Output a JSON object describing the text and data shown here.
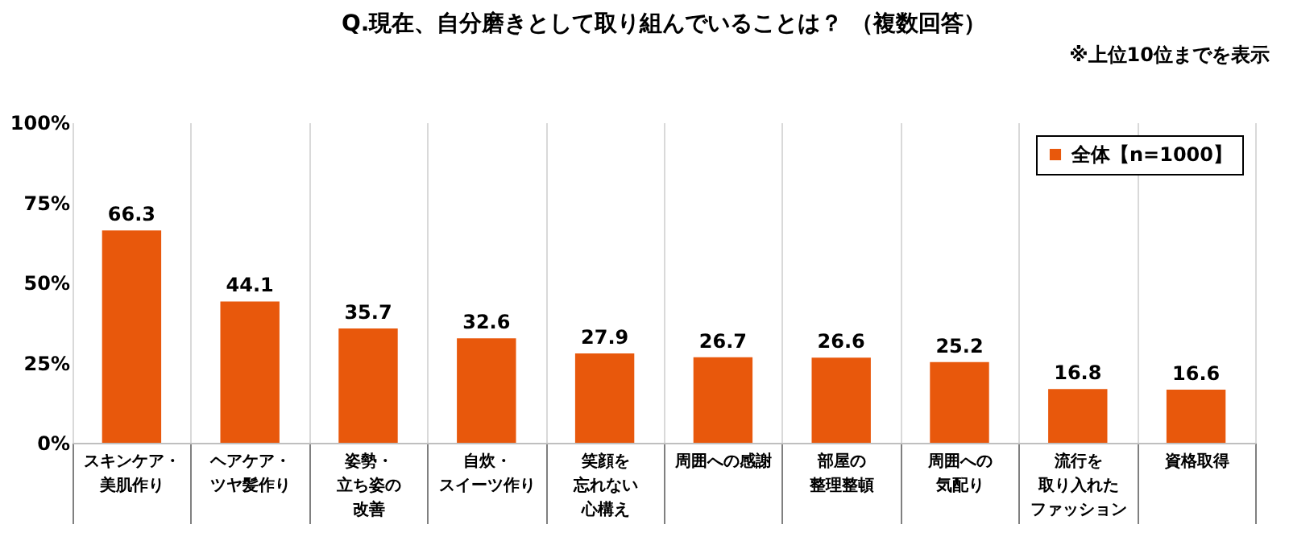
{
  "chart_data": {
    "type": "bar",
    "title": "Q.現在、自分磨きとして取り組んでいることは？ （複数回答）",
    "annotations": [
      "※上位10位までを表示"
    ],
    "categories": [
      "スキンケア・美肌作り",
      "ヘアケア・ツヤ髪作り",
      "姿勢・立ち姿の改善",
      "自炊・スイーツ作り",
      "笑顔を忘れない心構え",
      "周囲への感謝",
      "部屋の整理整頓",
      "周囲への気配り",
      "流行を取り入れたファッション",
      "資格取得"
    ],
    "series": [
      {
        "name": "全体【n=1000】",
        "color": "#e8580c",
        "values": [
          66.3,
          44.1,
          35.7,
          32.6,
          27.9,
          26.7,
          26.6,
          25.2,
          16.8,
          16.6
        ]
      }
    ],
    "ylim": [
      0,
      100
    ],
    "yticks": [
      {
        "value": 0,
        "label": "0%"
      },
      {
        "value": 25,
        "label": "25%"
      },
      {
        "value": 50,
        "label": "50%"
      },
      {
        "value": 75,
        "label": "75%"
      },
      {
        "value": 100,
        "label": "100%"
      }
    ],
    "grid": "x",
    "legend": "top right",
    "data_labels": true
  }
}
